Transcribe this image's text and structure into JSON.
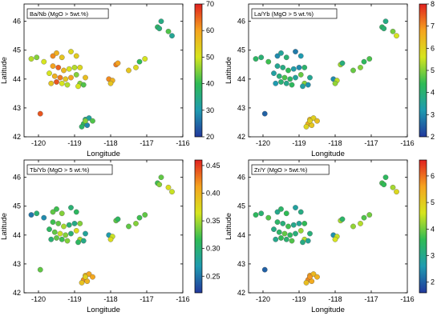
{
  "chart_data": [
    {
      "type": "scatter",
      "title": "Ba/Nb (MgO > 5wt.%)",
      "xlabel": "Longitude",
      "ylabel": "Latitude",
      "xlim": [
        -120.4,
        -116.0
      ],
      "ylim": [
        42.0,
        46.6
      ],
      "xticks": [
        -120,
        -119,
        -118,
        -117,
        -116
      ],
      "yticks": [
        42,
        43,
        44,
        45,
        46
      ],
      "colorbar": {
        "min": 20,
        "max": 70,
        "ticks": [
          20,
          30,
          40,
          50,
          60,
          70
        ]
      },
      "grid": false,
      "points": [
        {
          "x": -120.2,
          "y": 44.7,
          "v": 48
        },
        {
          "x": -120.05,
          "y": 44.75,
          "v": 45
        },
        {
          "x": -119.85,
          "y": 44.6,
          "v": 50
        },
        {
          "x": -119.6,
          "y": 44.8,
          "v": 62
        },
        {
          "x": -119.5,
          "y": 44.9,
          "v": 58
        },
        {
          "x": -119.35,
          "y": 44.75,
          "v": 55
        },
        {
          "x": -119.1,
          "y": 44.95,
          "v": 52
        },
        {
          "x": -118.95,
          "y": 44.8,
          "v": 54
        },
        {
          "x": -119.6,
          "y": 44.45,
          "v": 60
        },
        {
          "x": -119.45,
          "y": 44.4,
          "v": 65
        },
        {
          "x": -119.3,
          "y": 44.3,
          "v": 57
        },
        {
          "x": -119.15,
          "y": 44.35,
          "v": 50
        },
        {
          "x": -119.0,
          "y": 44.4,
          "v": 48
        },
        {
          "x": -118.85,
          "y": 44.4,
          "v": 52
        },
        {
          "x": -119.7,
          "y": 44.2,
          "v": 50
        },
        {
          "x": -119.55,
          "y": 44.1,
          "v": 58
        },
        {
          "x": -119.4,
          "y": 44.05,
          "v": 63
        },
        {
          "x": -119.25,
          "y": 44.0,
          "v": 55
        },
        {
          "x": -119.1,
          "y": 44.05,
          "v": 60
        },
        {
          "x": -118.95,
          "y": 44.15,
          "v": 45
        },
        {
          "x": -119.65,
          "y": 43.85,
          "v": 55
        },
        {
          "x": -119.5,
          "y": 43.9,
          "v": 66
        },
        {
          "x": -119.35,
          "y": 43.85,
          "v": 50
        },
        {
          "x": -119.2,
          "y": 43.8,
          "v": 48
        },
        {
          "x": -118.85,
          "y": 43.85,
          "v": 45
        },
        {
          "x": -118.7,
          "y": 44.05,
          "v": 56
        },
        {
          "x": -118.75,
          "y": 43.8,
          "v": 42
        },
        {
          "x": -118.9,
          "y": 43.75,
          "v": 50
        },
        {
          "x": -119.95,
          "y": 42.8,
          "v": 66
        },
        {
          "x": -118.7,
          "y": 42.6,
          "v": 35
        },
        {
          "x": -118.6,
          "y": 42.65,
          "v": 32
        },
        {
          "x": -118.75,
          "y": 42.45,
          "v": 40
        },
        {
          "x": -118.65,
          "y": 42.4,
          "v": 28
        },
        {
          "x": -118.8,
          "y": 42.35,
          "v": 38
        },
        {
          "x": -118.5,
          "y": 42.55,
          "v": 42
        },
        {
          "x": -118.7,
          "y": 42.55,
          "v": 45
        },
        {
          "x": -118.05,
          "y": 44.0,
          "v": 62
        },
        {
          "x": -117.95,
          "y": 43.95,
          "v": 58
        },
        {
          "x": -117.85,
          "y": 44.5,
          "v": 63
        },
        {
          "x": -117.8,
          "y": 44.55,
          "v": 60
        },
        {
          "x": -117.5,
          "y": 44.3,
          "v": 55
        },
        {
          "x": -117.3,
          "y": 44.4,
          "v": 52
        },
        {
          "x": -117.2,
          "y": 44.6,
          "v": 40
        },
        {
          "x": -117.05,
          "y": 44.7,
          "v": 50
        },
        {
          "x": -116.7,
          "y": 45.8,
          "v": 38
        },
        {
          "x": -116.6,
          "y": 46.0,
          "v": 35
        },
        {
          "x": -116.65,
          "y": 45.75,
          "v": 36
        },
        {
          "x": -116.4,
          "y": 45.65,
          "v": 42
        },
        {
          "x": -116.3,
          "y": 45.5,
          "v": 33
        },
        {
          "x": -118.0,
          "y": 43.85,
          "v": 55
        }
      ]
    },
    {
      "type": "scatter",
      "title": "La/Yb (MgO > 5 wt.%)",
      "xlabel": "Longitude",
      "ylabel": "Latitude",
      "xlim": [
        -120.4,
        -116.0
      ],
      "ylim": [
        42.0,
        46.6
      ],
      "xticks": [
        -120,
        -119,
        -118,
        -117,
        -116
      ],
      "yticks": [
        42,
        43,
        44,
        45,
        46
      ],
      "colorbar": {
        "min": 2,
        "max": 8,
        "ticks": [
          2,
          3,
          4,
          5,
          6,
          7,
          8
        ]
      },
      "grid": false,
      "points": [
        {
          "x": -120.2,
          "y": 44.7,
          "v": 4.2
        },
        {
          "x": -120.05,
          "y": 44.75,
          "v": 4.0
        },
        {
          "x": -119.85,
          "y": 44.6,
          "v": 4.5
        },
        {
          "x": -119.6,
          "y": 44.8,
          "v": 3.0
        },
        {
          "x": -119.5,
          "y": 44.9,
          "v": 3.5
        },
        {
          "x": -119.35,
          "y": 44.75,
          "v": 4.0
        },
        {
          "x": -119.1,
          "y": 44.95,
          "v": 2.8
        },
        {
          "x": -118.95,
          "y": 44.8,
          "v": 3.2
        },
        {
          "x": -119.6,
          "y": 44.45,
          "v": 3.6
        },
        {
          "x": -119.45,
          "y": 44.4,
          "v": 3.8
        },
        {
          "x": -119.3,
          "y": 44.3,
          "v": 4.4
        },
        {
          "x": -119.15,
          "y": 44.35,
          "v": 3.3
        },
        {
          "x": -119.0,
          "y": 44.4,
          "v": 3.0
        },
        {
          "x": -118.85,
          "y": 44.4,
          "v": 4.1
        },
        {
          "x": -119.7,
          "y": 44.2,
          "v": 3.4
        },
        {
          "x": -119.55,
          "y": 44.1,
          "v": 3.9
        },
        {
          "x": -119.4,
          "y": 44.05,
          "v": 4.6
        },
        {
          "x": -119.25,
          "y": 44.0,
          "v": 4.2
        },
        {
          "x": -119.1,
          "y": 44.05,
          "v": 3.5
        },
        {
          "x": -118.95,
          "y": 44.15,
          "v": 4.8
        },
        {
          "x": -119.65,
          "y": 43.85,
          "v": 3.2
        },
        {
          "x": -119.5,
          "y": 43.9,
          "v": 4.0
        },
        {
          "x": -119.35,
          "y": 43.85,
          "v": 3.7
        },
        {
          "x": -119.2,
          "y": 43.8,
          "v": 4.3
        },
        {
          "x": -118.85,
          "y": 43.85,
          "v": 5.0
        },
        {
          "x": -118.7,
          "y": 44.05,
          "v": 3.6
        },
        {
          "x": -118.75,
          "y": 43.8,
          "v": 3.1
        },
        {
          "x": -118.9,
          "y": 43.75,
          "v": 3.4
        },
        {
          "x": -119.95,
          "y": 42.8,
          "v": 2.5
        },
        {
          "x": -118.7,
          "y": 42.6,
          "v": 6.4
        },
        {
          "x": -118.6,
          "y": 42.65,
          "v": 6.0
        },
        {
          "x": -118.75,
          "y": 42.45,
          "v": 6.6
        },
        {
          "x": -118.65,
          "y": 42.4,
          "v": 6.2
        },
        {
          "x": -118.8,
          "y": 42.35,
          "v": 5.9
        },
        {
          "x": -118.5,
          "y": 42.55,
          "v": 6.3
        },
        {
          "x": -118.7,
          "y": 42.55,
          "v": 6.0
        },
        {
          "x": -118.05,
          "y": 44.0,
          "v": 3.0
        },
        {
          "x": -117.95,
          "y": 43.95,
          "v": 5.4
        },
        {
          "x": -117.85,
          "y": 44.5,
          "v": 5.2
        },
        {
          "x": -117.8,
          "y": 44.55,
          "v": 3.9
        },
        {
          "x": -117.5,
          "y": 44.3,
          "v": 4.8
        },
        {
          "x": -117.3,
          "y": 44.4,
          "v": 5.0
        },
        {
          "x": -117.2,
          "y": 44.6,
          "v": 4.3
        },
        {
          "x": -117.05,
          "y": 44.7,
          "v": 4.6
        },
        {
          "x": -116.7,
          "y": 45.8,
          "v": 4.2
        },
        {
          "x": -116.6,
          "y": 46.0,
          "v": 3.8
        },
        {
          "x": -116.65,
          "y": 45.75,
          "v": 4.0
        },
        {
          "x": -116.4,
          "y": 45.65,
          "v": 4.9
        },
        {
          "x": -116.3,
          "y": 45.5,
          "v": 5.6
        },
        {
          "x": -118.0,
          "y": 43.85,
          "v": 5.1
        }
      ]
    },
    {
      "type": "scatter",
      "title": "Tb/Yb (MgO > 5 wt.%)",
      "xlabel": "Longitude",
      "ylabel": "Latitude",
      "xlim": [
        -120.4,
        -116.0
      ],
      "ylim": [
        42.0,
        46.6
      ],
      "xticks": [
        -120,
        -119,
        -118,
        -117,
        -116
      ],
      "yticks": [
        42,
        43,
        44,
        45,
        46
      ],
      "colorbar": {
        "min": 0.22,
        "max": 0.46,
        "ticks": [
          0.25,
          0.3,
          0.35,
          0.4,
          0.45
        ]
      },
      "grid": false,
      "points": [
        {
          "x": -120.2,
          "y": 44.7,
          "v": 0.25
        },
        {
          "x": -120.05,
          "y": 44.75,
          "v": 0.3
        },
        {
          "x": -119.85,
          "y": 44.6,
          "v": 0.26
        },
        {
          "x": -119.6,
          "y": 44.8,
          "v": 0.33
        },
        {
          "x": -119.5,
          "y": 44.9,
          "v": 0.32
        },
        {
          "x": -119.35,
          "y": 44.75,
          "v": 0.34
        },
        {
          "x": -119.1,
          "y": 44.95,
          "v": 0.3
        },
        {
          "x": -118.95,
          "y": 44.8,
          "v": 0.31
        },
        {
          "x": -119.6,
          "y": 44.45,
          "v": 0.32
        },
        {
          "x": -119.45,
          "y": 44.4,
          "v": 0.33
        },
        {
          "x": -119.3,
          "y": 44.3,
          "v": 0.35
        },
        {
          "x": -119.15,
          "y": 44.35,
          "v": 0.3
        },
        {
          "x": -119.0,
          "y": 44.4,
          "v": 0.29
        },
        {
          "x": -118.85,
          "y": 44.4,
          "v": 0.34
        },
        {
          "x": -119.7,
          "y": 44.2,
          "v": 0.31
        },
        {
          "x": -119.55,
          "y": 44.1,
          "v": 0.33
        },
        {
          "x": -119.4,
          "y": 44.05,
          "v": 0.36
        },
        {
          "x": -119.25,
          "y": 44.0,
          "v": 0.34
        },
        {
          "x": -119.1,
          "y": 44.05,
          "v": 0.3
        },
        {
          "x": -118.95,
          "y": 44.15,
          "v": 0.37
        },
        {
          "x": -119.65,
          "y": 43.85,
          "v": 0.3
        },
        {
          "x": -119.5,
          "y": 43.9,
          "v": 0.33
        },
        {
          "x": -119.35,
          "y": 43.85,
          "v": 0.32
        },
        {
          "x": -119.2,
          "y": 43.8,
          "v": 0.34
        },
        {
          "x": -118.85,
          "y": 43.85,
          "v": 0.35
        },
        {
          "x": -118.7,
          "y": 44.05,
          "v": 0.28
        },
        {
          "x": -118.75,
          "y": 43.8,
          "v": 0.29
        },
        {
          "x": -118.9,
          "y": 43.75,
          "v": 0.31
        },
        {
          "x": -119.95,
          "y": 42.8,
          "v": 0.33
        },
        {
          "x": -118.7,
          "y": 42.6,
          "v": 0.4
        },
        {
          "x": -118.6,
          "y": 42.65,
          "v": 0.41
        },
        {
          "x": -118.75,
          "y": 42.45,
          "v": 0.42
        },
        {
          "x": -118.65,
          "y": 42.4,
          "v": 0.4
        },
        {
          "x": -118.8,
          "y": 42.35,
          "v": 0.39
        },
        {
          "x": -118.5,
          "y": 42.55,
          "v": 0.41
        },
        {
          "x": -118.7,
          "y": 42.55,
          "v": 0.38
        },
        {
          "x": -118.05,
          "y": 44.0,
          "v": 0.27
        },
        {
          "x": -117.95,
          "y": 43.95,
          "v": 0.36
        },
        {
          "x": -117.85,
          "y": 44.5,
          "v": 0.33
        },
        {
          "x": -117.8,
          "y": 44.55,
          "v": 0.31
        },
        {
          "x": -117.5,
          "y": 44.3,
          "v": 0.33
        },
        {
          "x": -117.3,
          "y": 44.4,
          "v": 0.34
        },
        {
          "x": -117.2,
          "y": 44.6,
          "v": 0.32
        },
        {
          "x": -117.05,
          "y": 44.7,
          "v": 0.33
        },
        {
          "x": -116.7,
          "y": 45.8,
          "v": 0.32
        },
        {
          "x": -116.6,
          "y": 46.0,
          "v": 0.33
        },
        {
          "x": -116.65,
          "y": 45.75,
          "v": 0.34
        },
        {
          "x": -116.4,
          "y": 45.65,
          "v": 0.37
        },
        {
          "x": -116.3,
          "y": 45.5,
          "v": 0.36
        },
        {
          "x": -118.0,
          "y": 43.85,
          "v": 0.37
        }
      ]
    },
    {
      "type": "scatter",
      "title": "Zr/Y (MgO > 5wt.%)",
      "xlabel": "Longitude",
      "ylabel": "Latitude",
      "xlim": [
        -120.4,
        -116.0
      ],
      "ylim": [
        42.0,
        46.6
      ],
      "xticks": [
        -120,
        -119,
        -118,
        -117,
        -116
      ],
      "yticks": [
        42,
        43,
        44,
        45,
        46
      ],
      "colorbar": {
        "min": 1.6,
        "max": 6.6,
        "ticks": [
          2,
          3,
          4,
          5,
          6
        ]
      },
      "grid": false,
      "points": [
        {
          "x": -120.2,
          "y": 44.7,
          "v": 3.5
        },
        {
          "x": -120.05,
          "y": 44.75,
          "v": 3.3
        },
        {
          "x": -119.85,
          "y": 44.6,
          "v": 3.8
        },
        {
          "x": -119.6,
          "y": 44.8,
          "v": 3.0
        },
        {
          "x": -119.5,
          "y": 44.9,
          "v": 3.4
        },
        {
          "x": -119.35,
          "y": 44.75,
          "v": 3.6
        },
        {
          "x": -119.1,
          "y": 44.95,
          "v": 2.8
        },
        {
          "x": -118.95,
          "y": 44.8,
          "v": 3.1
        },
        {
          "x": -119.6,
          "y": 44.45,
          "v": 3.4
        },
        {
          "x": -119.45,
          "y": 44.4,
          "v": 3.2
        },
        {
          "x": -119.3,
          "y": 44.3,
          "v": 3.7
        },
        {
          "x": -119.15,
          "y": 44.35,
          "v": 3.0
        },
        {
          "x": -119.0,
          "y": 44.4,
          "v": 2.9
        },
        {
          "x": -118.85,
          "y": 44.4,
          "v": 3.6
        },
        {
          "x": -119.7,
          "y": 44.2,
          "v": 3.1
        },
        {
          "x": -119.55,
          "y": 44.1,
          "v": 3.4
        },
        {
          "x": -119.4,
          "y": 44.05,
          "v": 3.9
        },
        {
          "x": -119.25,
          "y": 44.0,
          "v": 3.5
        },
        {
          "x": -119.1,
          "y": 44.05,
          "v": 3.2
        },
        {
          "x": -118.95,
          "y": 44.15,
          "v": 4.2
        },
        {
          "x": -119.65,
          "y": 43.85,
          "v": 3.0
        },
        {
          "x": -119.5,
          "y": 43.9,
          "v": 3.6
        },
        {
          "x": -119.35,
          "y": 43.85,
          "v": 3.3
        },
        {
          "x": -119.2,
          "y": 43.8,
          "v": 3.8
        },
        {
          "x": -118.85,
          "y": 43.85,
          "v": 4.4
        },
        {
          "x": -118.7,
          "y": 44.05,
          "v": 3.2
        },
        {
          "x": -118.75,
          "y": 43.8,
          "v": 2.9
        },
        {
          "x": -118.9,
          "y": 43.75,
          "v": 3.1
        },
        {
          "x": -119.95,
          "y": 42.8,
          "v": 2.0
        },
        {
          "x": -118.7,
          "y": 42.6,
          "v": 5.6
        },
        {
          "x": -118.6,
          "y": 42.65,
          "v": 5.3
        },
        {
          "x": -118.75,
          "y": 42.45,
          "v": 5.8
        },
        {
          "x": -118.65,
          "y": 42.4,
          "v": 5.5
        },
        {
          "x": -118.8,
          "y": 42.35,
          "v": 5.2
        },
        {
          "x": -118.5,
          "y": 42.55,
          "v": 5.4
        },
        {
          "x": -118.7,
          "y": 42.55,
          "v": 5.7
        },
        {
          "x": -118.05,
          "y": 44.0,
          "v": 2.5
        },
        {
          "x": -117.95,
          "y": 43.95,
          "v": 4.5
        },
        {
          "x": -117.85,
          "y": 44.5,
          "v": 4.3
        },
        {
          "x": -117.8,
          "y": 44.55,
          "v": 3.4
        },
        {
          "x": -117.5,
          "y": 44.3,
          "v": 4.2
        },
        {
          "x": -117.3,
          "y": 44.4,
          "v": 4.4
        },
        {
          "x": -117.2,
          "y": 44.6,
          "v": 3.8
        },
        {
          "x": -117.05,
          "y": 44.7,
          "v": 4.0
        },
        {
          "x": -116.7,
          "y": 45.8,
          "v": 3.7
        },
        {
          "x": -116.6,
          "y": 46.0,
          "v": 3.5
        },
        {
          "x": -116.65,
          "y": 45.75,
          "v": 3.6
        },
        {
          "x": -116.4,
          "y": 45.65,
          "v": 4.3
        },
        {
          "x": -116.3,
          "y": 45.5,
          "v": 4.8
        },
        {
          "x": -118.0,
          "y": 43.85,
          "v": 4.6
        }
      ]
    }
  ]
}
